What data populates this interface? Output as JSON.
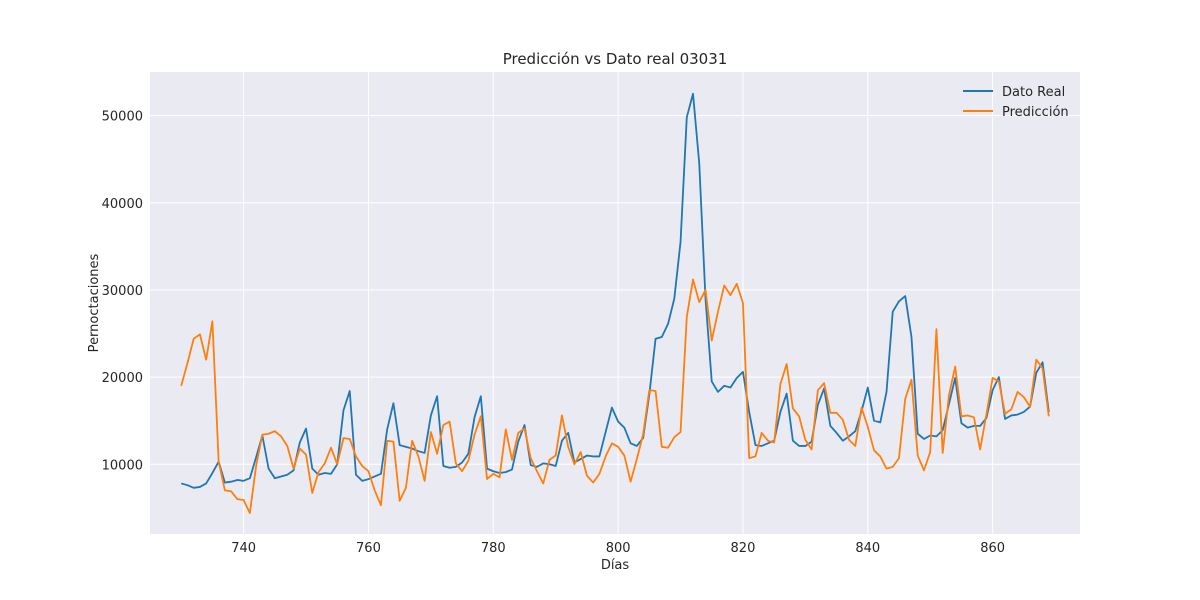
{
  "chart_data": {
    "type": "line",
    "title": "Predicción vs Dato real 03031",
    "xlabel": "Días",
    "ylabel": "Pernoctaciones",
    "xlim": [
      725,
      874
    ],
    "ylim": [
      2000,
      55000
    ],
    "xticks": [
      740,
      760,
      780,
      800,
      820,
      840,
      860
    ],
    "yticks": [
      10000,
      20000,
      30000,
      40000,
      50000
    ],
    "grid": true,
    "legend": "top-right",
    "x": [
      730,
      731,
      732,
      733,
      734,
      735,
      736,
      737,
      738,
      739,
      740,
      741,
      742,
      743,
      744,
      745,
      746,
      747,
      748,
      749,
      750,
      751,
      752,
      753,
      754,
      755,
      756,
      757,
      758,
      759,
      760,
      761,
      762,
      763,
      764,
      765,
      766,
      767,
      768,
      769,
      770,
      771,
      772,
      773,
      774,
      775,
      776,
      777,
      778,
      779,
      780,
      781,
      782,
      783,
      784,
      785,
      786,
      787,
      788,
      789,
      790,
      791,
      792,
      793,
      794,
      795,
      796,
      797,
      798,
      799,
      800,
      801,
      802,
      803,
      804,
      805,
      806,
      807,
      808,
      809,
      810,
      811,
      812,
      813,
      814,
      815,
      816,
      817,
      818,
      819,
      820,
      821,
      822,
      823,
      824,
      825,
      826,
      827,
      828,
      829,
      830,
      831,
      832,
      833,
      834,
      835,
      836,
      837,
      838,
      839,
      840,
      841,
      842,
      843,
      844,
      845,
      846,
      847,
      848,
      849,
      850,
      851,
      852,
      853,
      854,
      855,
      856,
      857,
      858,
      859,
      860,
      861,
      862,
      863,
      864,
      865,
      866,
      867,
      868,
      869
    ],
    "series": [
      {
        "name": "Dato Real",
        "color": "#1f77b4",
        "values": [
          7800,
          7600,
          7300,
          7400,
          7800,
          9000,
          10300,
          7900,
          8000,
          8200,
          8100,
          8400,
          10800,
          13300,
          9500,
          8400,
          8600,
          8800,
          9300,
          12500,
          14100,
          9500,
          8800,
          9000,
          8900,
          10000,
          16200,
          18400,
          8800,
          8100,
          8300,
          8600,
          8900,
          14000,
          17000,
          12200,
          12000,
          11800,
          11500,
          11300,
          15600,
          17800,
          9800,
          9600,
          9700,
          10200,
          11200,
          15400,
          17800,
          9500,
          9200,
          9000,
          9100,
          9400,
          12600,
          14500,
          9900,
          9700,
          10100,
          10000,
          9800,
          12700,
          13600,
          10200,
          10600,
          11000,
          10900,
          10900,
          13700,
          16500,
          14900,
          14200,
          12400,
          12100,
          13000,
          18000,
          24400,
          24600,
          26100,
          29000,
          35500,
          49800,
          52500,
          44500,
          29000,
          19500,
          18300,
          19000,
          18800,
          19900,
          20600,
          16000,
          12200,
          12100,
          12400,
          12700,
          16000,
          18100,
          12700,
          12100,
          12100,
          12600,
          16800,
          18700,
          14400,
          13600,
          12700,
          13200,
          13800,
          16100,
          18800,
          15000,
          14800,
          18300,
          27500,
          28700,
          29300,
          24600,
          13500,
          12900,
          13300,
          13200,
          13900,
          16900,
          19900,
          14700,
          14200,
          14400,
          14400,
          15300,
          18500,
          20000,
          15200,
          15600,
          15700,
          16000,
          16600,
          20500,
          21700,
          16000
        ]
      },
      {
        "name": "Predicción",
        "color": "#ff7f0e",
        "values": [
          19000,
          21600,
          24400,
          24900,
          22000,
          26400,
          10300,
          7000,
          6900,
          6000,
          5900,
          4400,
          9800,
          13400,
          13500,
          13800,
          13200,
          12100,
          9500,
          11800,
          11100,
          6700,
          9100,
          10100,
          11900,
          10000,
          13000,
          12900,
          10900,
          9800,
          9200,
          7000,
          5300,
          12700,
          12600,
          5800,
          7300,
          12700,
          10900,
          8100,
          13700,
          11200,
          14500,
          14900,
          10100,
          9200,
          10400,
          13400,
          15500,
          8300,
          8900,
          8500,
          14000,
          10500,
          13600,
          14100,
          10700,
          9200,
          7800,
          10500,
          11000,
          15600,
          12000,
          10000,
          11400,
          8700,
          7900,
          8900,
          10900,
          12400,
          12000,
          11000,
          8000,
          10600,
          13400,
          18500,
          18400,
          12000,
          11900,
          13100,
          13700,
          26900,
          31200,
          28600,
          30000,
          24200,
          27500,
          30500,
          29400,
          30700,
          28500,
          10700,
          10900,
          13600,
          12700,
          12500,
          19200,
          21500,
          16400,
          15500,
          12800,
          11700,
          18500,
          19300,
          15900,
          15900,
          15100,
          12800,
          12100,
          16500,
          14300,
          11600,
          10900,
          9500,
          9700,
          10700,
          17500,
          19700,
          11000,
          9300,
          11400,
          25500,
          11300,
          17900,
          21200,
          15500,
          15600,
          15400,
          11700,
          15700,
          19900,
          19500,
          15800,
          16300,
          18300,
          17700,
          16600,
          22000,
          21000,
          15500
        ]
      }
    ]
  }
}
